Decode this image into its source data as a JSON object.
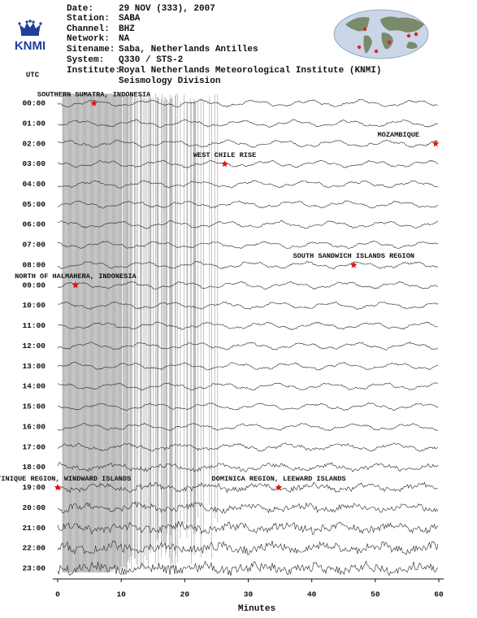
{
  "header": {
    "fields": [
      {
        "label": "Date:",
        "value": "29 NOV (333), 2007"
      },
      {
        "label": "Station:",
        "value": "SABA"
      },
      {
        "label": "Channel:",
        "value": "BHZ"
      },
      {
        "label": "Network:",
        "value": "NA"
      },
      {
        "label": "Sitename:",
        "value": "Saba, Netherlands Antilles"
      },
      {
        "label": "System:",
        "value": "Q330 / STS-2"
      },
      {
        "label": "Institute:",
        "value": "Royal Netherlands Meteorological Institute (KNMI)"
      }
    ],
    "institute_line2": "Seismology Division",
    "logo": "KNMI",
    "timezone": "UTC"
  },
  "chart_data": {
    "type": "helicorder",
    "xlabel": "Minutes",
    "xlim": [
      0,
      60
    ],
    "xticks": [
      0,
      10,
      20,
      30,
      40,
      50,
      60
    ],
    "categories": [
      "00:00",
      "01:00",
      "02:00",
      "03:00",
      "04:00",
      "05:00",
      "06:00",
      "07:00",
      "08:00",
      "09:00",
      "10:00",
      "11:00",
      "12:00",
      "13:00",
      "14:00",
      "15:00",
      "16:00",
      "17:00",
      "18:00",
      "19:00",
      "20:00",
      "21:00",
      "22:00",
      "23:00"
    ],
    "events": [
      {
        "name": "SOUTHERN SUMATRA, INDONESIA",
        "x": 5.7,
        "y": 0
      },
      {
        "name": "MOZAMBIQUE",
        "x": 59.5,
        "y": 2
      },
      {
        "name": "WEST CHILE RISE",
        "x": 26.3,
        "y": 3
      },
      {
        "name": "SOUTH SANDWICH ISLANDS REGION",
        "x": 46.6,
        "y": 8
      },
      {
        "name": "NORTH OF HALMAHERA, INDONESIA",
        "x": 2.8,
        "y": 9
      },
      {
        "name": "MARTINIQUE REGION, WINDWARD ISLANDS",
        "x": 0,
        "y": 19
      },
      {
        "name": "DOMINICA REGION, LEEWARD ISLANDS",
        "x": 34.8,
        "y": 19
      }
    ]
  }
}
